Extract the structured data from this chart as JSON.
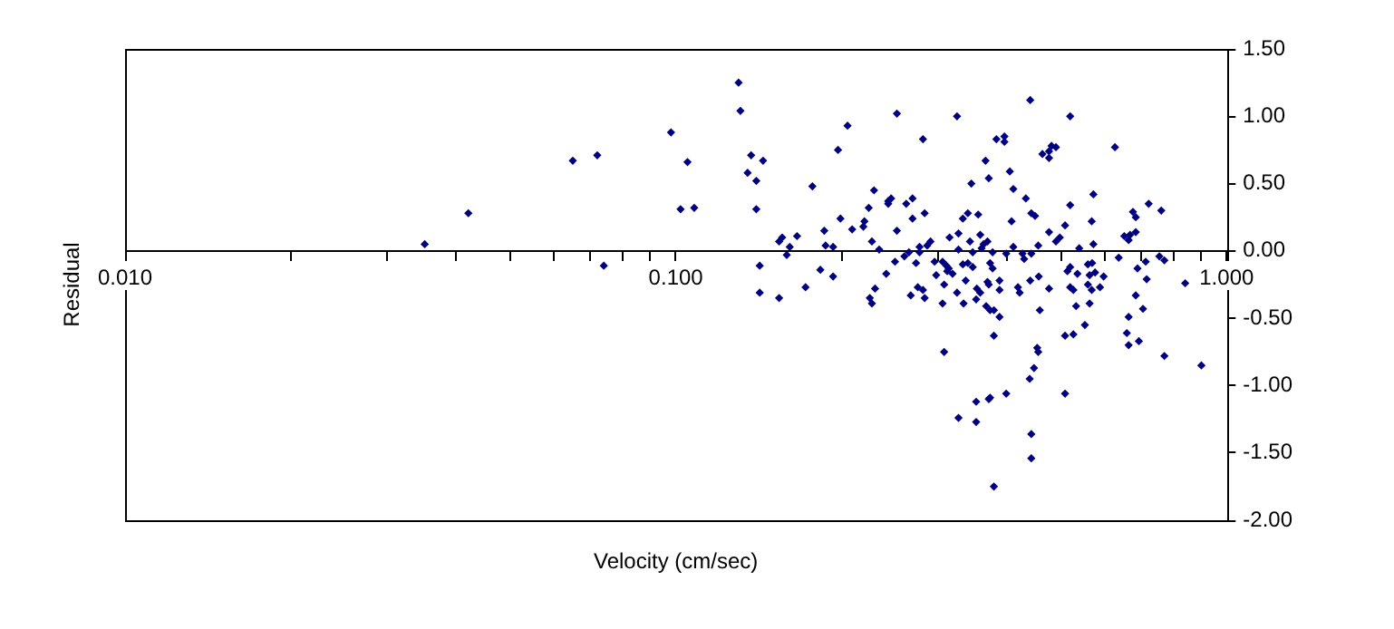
{
  "chart_data": {
    "type": "scatter",
    "xlabel": "Velocity (cm/sec)",
    "ylabel": "Residual",
    "log": "x",
    "grid": false,
    "legend": false,
    "marker": "diamond",
    "xlim": [
      0.01,
      1
    ],
    "xticks": [
      {
        "value": 0.01,
        "label": "0.010"
      },
      {
        "value": 0.02,
        "label": null
      },
      {
        "value": 0.03,
        "label": null
      },
      {
        "value": 0.04,
        "label": null
      },
      {
        "value": 0.05,
        "label": null
      },
      {
        "value": 0.06,
        "label": null
      },
      {
        "value": 0.07,
        "label": null
      },
      {
        "value": 0.08,
        "label": null
      },
      {
        "value": 0.09,
        "label": null
      },
      {
        "value": 0.1,
        "label": "0.100"
      },
      {
        "value": 0.2,
        "label": null
      },
      {
        "value": 0.3,
        "label": null
      },
      {
        "value": 0.4,
        "label": null
      },
      {
        "value": 0.5,
        "label": null
      },
      {
        "value": 0.6,
        "label": null
      },
      {
        "value": 0.7,
        "label": null
      },
      {
        "value": 0.8,
        "label": null
      },
      {
        "value": 0.9,
        "label": null
      },
      {
        "value": 1,
        "label": "1.000"
      }
    ],
    "ylim": [
      -2,
      1.5
    ],
    "yticks": [
      {
        "value": -2,
        "label": "-2.00"
      },
      {
        "value": -1.5,
        "label": "-1.50"
      },
      {
        "value": -1,
        "label": "-1.00"
      },
      {
        "value": -0.5,
        "label": "-0.50"
      },
      {
        "value": 0,
        "label": "0.00"
      },
      {
        "value": 0.5,
        "label": "0.50"
      },
      {
        "value": 1,
        "label": "1.00"
      },
      {
        "value": 1.5,
        "label": "1.50"
      }
    ],
    "series": [
      {
        "color": "#000080",
        "x": [
          0.035,
          0.042,
          0.065,
          0.072,
          0.074,
          0.098,
          0.105,
          0.102,
          0.108,
          0.13,
          0.131,
          0.137,
          0.144,
          0.135,
          0.14,
          0.14,
          0.142,
          0.142,
          0.154,
          0.154,
          0.156,
          0.166,
          0.161,
          0.159,
          0.172,
          0.177,
          0.205,
          0.197,
          0.252,
          0.324,
          0.281,
          0.382,
          0.395,
          0.395,
          0.365,
          0.37,
          0.404,
          0.344,
          0.41,
          0.432,
          0.407,
          0.229,
          0.224,
          0.243,
          0.246,
          0.243,
          0.262,
          0.269,
          0.283,
          0.269,
          0.199,
          0.22,
          0.219,
          0.209,
          0.186,
          0.252,
          0.227,
          0.234,
          0.187,
          0.193,
          0.183,
          0.193,
          0.23,
          0.225,
          0.227,
          0.241,
          0.25,
          0.26,
          0.265,
          0.267,
          0.273,
          0.275,
          0.281,
          0.283,
          0.277,
          0.277,
          0.286,
          0.29,
          0.295,
          0.297,
          0.305,
          0.307,
          0.305,
          0.307,
          0.31,
          0.313,
          0.311,
          0.318,
          0.314,
          0.326,
          0.332,
          0.339,
          0.354,
          0.357,
          0.342,
          0.326,
          0.332,
          0.339,
          0.346,
          0.336,
          0.324,
          0.333,
          0.351,
          0.352,
          0.346,
          0.359,
          0.362,
          0.368,
          0.372,
          0.368,
          0.37,
          0.357,
          0.366,
          0.372,
          0.378,
          0.387,
          0.378,
          0.387,
          0.387,
          0.376,
          0.376,
          0.398,
          0.426,
          0.429,
          0.418,
          0.421,
          0.41,
          0.326,
          0.351,
          0.351,
          0.37,
          0.372,
          0.398,
          0.378,
          0.44,
          0.52,
          0.627,
          0.463,
          0.476,
          0.481,
          0.49,
          0.476,
          0.442,
          0.449,
          0.52,
          0.573,
          0.569,
          0.476,
          0.498,
          0.49,
          0.509,
          0.455,
          0.54,
          0.573,
          0.652,
          0.664,
          0.668,
          0.684,
          0.676,
          0.684,
          0.722,
          0.761,
          0.637,
          0.713,
          0.755,
          0.771,
          0.442,
          0.456,
          0.44,
          0.476,
          0.458,
          0.514,
          0.52,
          0.536,
          0.52,
          0.527,
          0.533,
          0.553,
          0.564,
          0.56,
          0.57,
          0.564,
          0.577,
          0.56,
          0.569,
          0.589,
          0.598,
          0.509,
          0.527,
          0.509,
          0.453,
          0.455,
          0.447,
          0.439,
          0.442,
          0.442,
          0.689,
          0.716,
          0.684,
          0.705,
          0.664,
          0.659,
          0.664,
          0.693,
          0.771,
          0.841,
          0.9
        ],
        "values": [
          0.05,
          0.28,
          0.67,
          0.71,
          -0.11,
          0.88,
          0.66,
          0.31,
          0.32,
          1.25,
          1.04,
          0.71,
          0.67,
          0.58,
          0.52,
          0.31,
          -0.11,
          -0.31,
          -0.35,
          0.07,
          0.1,
          0.11,
          0.03,
          -0.03,
          -0.27,
          0.48,
          0.93,
          0.75,
          1.02,
          1.0,
          0.83,
          0.83,
          0.85,
          0.81,
          0.67,
          0.54,
          0.59,
          0.5,
          0.46,
          0.39,
          0.22,
          0.45,
          0.32,
          0.37,
          0.39,
          0.35,
          0.35,
          0.39,
          0.28,
          0.24,
          0.24,
          0.22,
          0.18,
          0.16,
          0.15,
          0.15,
          0.07,
          0.01,
          0.04,
          0.03,
          -0.14,
          -0.19,
          -0.28,
          -0.35,
          -0.39,
          -0.17,
          -0.08,
          -0.04,
          -0.01,
          -0.33,
          -0.09,
          -0.27,
          -0.29,
          -0.35,
          0.03,
          -0.01,
          0.04,
          0.07,
          -0.08,
          -0.18,
          -0.08,
          -0.25,
          -0.39,
          -0.75,
          -0.11,
          -0.13,
          -0.15,
          -0.17,
          0.1,
          0.13,
          0.24,
          0.28,
          0.27,
          0.12,
          0.07,
          0.01,
          -0.1,
          -0.09,
          -0.12,
          -0.22,
          -0.31,
          -0.39,
          -0.36,
          -0.28,
          -0.01,
          0.02,
          0.05,
          0.07,
          -0.09,
          -0.23,
          -0.25,
          -0.31,
          -0.41,
          -0.44,
          -0.44,
          -0.49,
          -0.63,
          -0.29,
          -0.22,
          -0.13,
          -0.01,
          -0.02,
          -0.02,
          -0.06,
          -0.27,
          -0.31,
          0.03,
          -1.24,
          -1.12,
          -1.27,
          -1.1,
          -1.09,
          -1.06,
          -1.75,
          1.12,
          1.0,
          0.77,
          0.72,
          0.74,
          0.78,
          0.77,
          0.69,
          0.28,
          0.26,
          0.34,
          0.42,
          0.22,
          0.14,
          0.1,
          0.07,
          0.19,
          0.04,
          0.02,
          0.05,
          0.11,
          0.08,
          0.12,
          0.14,
          0.29,
          0.25,
          0.35,
          0.3,
          -0.05,
          -0.08,
          -0.04,
          -0.07,
          -0.02,
          -0.19,
          -0.22,
          -0.28,
          -0.44,
          -0.15,
          -0.12,
          -0.17,
          -0.27,
          -0.29,
          -0.41,
          -0.55,
          -0.39,
          -0.1,
          -0.09,
          -0.18,
          -0.16,
          -0.25,
          -0.29,
          -0.27,
          -0.19,
          -0.63,
          -0.62,
          -1.06,
          -0.72,
          -0.75,
          -0.87,
          -0.95,
          -1.36,
          -1.54,
          -0.13,
          -0.21,
          -0.33,
          -0.43,
          -0.49,
          -0.61,
          -0.7,
          -0.67,
          -0.78,
          -0.24,
          -0.85
        ]
      }
    ]
  }
}
